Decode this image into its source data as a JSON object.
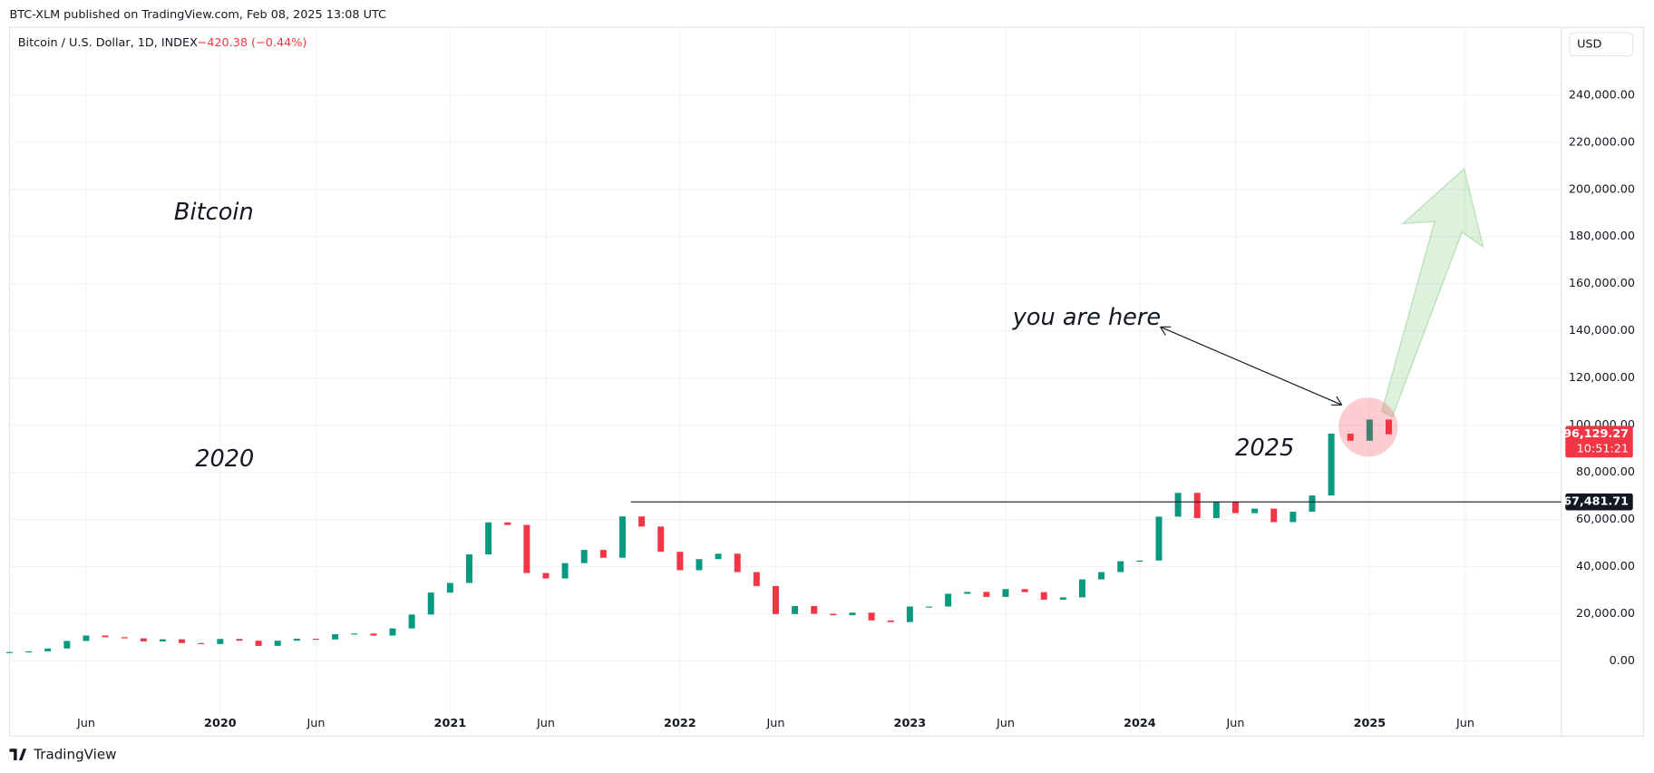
{
  "header": "BTC-XLM published on TradingView.com, Feb 08, 2025 13:08 UTC",
  "footer": "TradingView",
  "chart_data": {
    "type": "candlestick",
    "title": "Bitcoin / U.S. Dollar, 1D, INDEX",
    "change": "−420.38 (−0.44%)",
    "currency": "USD",
    "annotations": [
      "Bitcoin",
      "2020",
      "2025",
      "you are here"
    ],
    "up_color": "#089981",
    "down_color": "#f23645",
    "x": [
      "2019-02",
      "2019-03",
      "2019-04",
      "2019-05",
      "2019-06",
      "2019-07",
      "2019-08",
      "2019-09",
      "2019-10",
      "2019-11",
      "2019-12",
      "2020-01",
      "2020-02",
      "2020-03",
      "2020-04",
      "2020-05",
      "2020-06",
      "2020-07",
      "2020-08",
      "2020-09",
      "2020-10",
      "2020-11",
      "2020-12",
      "2021-01",
      "2021-02",
      "2021-03",
      "2021-04",
      "2021-05",
      "2021-06",
      "2021-07",
      "2021-08",
      "2021-09",
      "2021-10",
      "2021-11",
      "2021-12",
      "2022-01",
      "2022-02",
      "2022-03",
      "2022-04",
      "2022-05",
      "2022-06",
      "2022-07",
      "2022-08",
      "2022-09",
      "2022-10",
      "2022-11",
      "2022-12",
      "2023-01",
      "2023-02",
      "2023-03",
      "2023-04",
      "2023-05",
      "2023-06",
      "2023-07",
      "2023-08",
      "2023-09",
      "2023-10",
      "2023-11",
      "2023-12",
      "2024-01",
      "2024-02",
      "2024-03",
      "2024-04",
      "2024-05",
      "2024-06",
      "2024-07",
      "2024-08",
      "2024-09",
      "2024-10",
      "2024-11",
      "2024-12",
      "2025-01",
      "2025-02"
    ],
    "series": [
      {
        "name": "Bitcoin",
        "values": [
          3800,
          4100,
          5300,
          8500,
          10800,
          10100,
          9600,
          8300,
          9200,
          7600,
          7200,
          9350,
          8600,
          6400,
          8600,
          9450,
          9140,
          11350,
          11650,
          10780,
          13800,
          19700,
          29000,
          33100,
          45200,
          58800,
          57700,
          37300,
          35000,
          41500,
          47100,
          43800,
          61300,
          57000,
          46300,
          38500,
          43200,
          45500,
          37700,
          31800,
          19900,
          23300,
          20000,
          19400,
          20500,
          17200,
          16500,
          23100,
          23100,
          28500,
          29300,
          27200,
          30500,
          29200,
          26000,
          27000,
          34600,
          37700,
          42300,
          42600,
          61200,
          71300,
          60600,
          67500,
          62700,
          64600,
          58900,
          63300,
          70200,
          96400,
          93400,
          102400,
          96129.27
        ]
      }
    ],
    "last_price": {
      "value": 96129.27,
      "label": "96,129.27"
    },
    "countdown": "10:51:21",
    "hline": {
      "value": 67481.71,
      "label": "67,481.71"
    },
    "xlim": [
      "2019-02",
      "2025-11"
    ],
    "xticks": [
      {
        "value": "2019-06",
        "label": "Jun"
      },
      {
        "value": "2020-01",
        "label": "2020"
      },
      {
        "value": "2020-06",
        "label": "Jun"
      },
      {
        "value": "2021-01",
        "label": "2021"
      },
      {
        "value": "2021-06",
        "label": "Jun"
      },
      {
        "value": "2022-01",
        "label": "2022"
      },
      {
        "value": "2022-06",
        "label": "Jun"
      },
      {
        "value": "2023-01",
        "label": "2023"
      },
      {
        "value": "2023-06",
        "label": "Jun"
      },
      {
        "value": "2024-01",
        "label": "2024"
      },
      {
        "value": "2024-06",
        "label": "Jun"
      },
      {
        "value": "2025-01",
        "label": "2025"
      },
      {
        "value": "2025-06",
        "label": "Jun"
      }
    ],
    "ylim": [
      -31850,
      268700
    ],
    "yticks": [
      {
        "value": 0,
        "label": "0.00"
      },
      {
        "value": 20000,
        "label": "20,000.00"
      },
      {
        "value": 40000,
        "label": "40,000.00"
      },
      {
        "value": 60000,
        "label": "60,000.00"
      },
      {
        "value": 80000,
        "label": "80,000.00"
      },
      {
        "value": 100000,
        "label": "100,000.00"
      },
      {
        "value": 120000,
        "label": "120,000.00"
      },
      {
        "value": 140000,
        "label": "140,000.00"
      },
      {
        "value": 160000,
        "label": "160,000.00"
      },
      {
        "value": 180000,
        "label": "180,000.00"
      },
      {
        "value": 200000,
        "label": "200,000.00"
      },
      {
        "value": 220000,
        "label": "220,000.00"
      },
      {
        "value": 240000,
        "label": "240,000.00"
      }
    ],
    "grid": true
  }
}
